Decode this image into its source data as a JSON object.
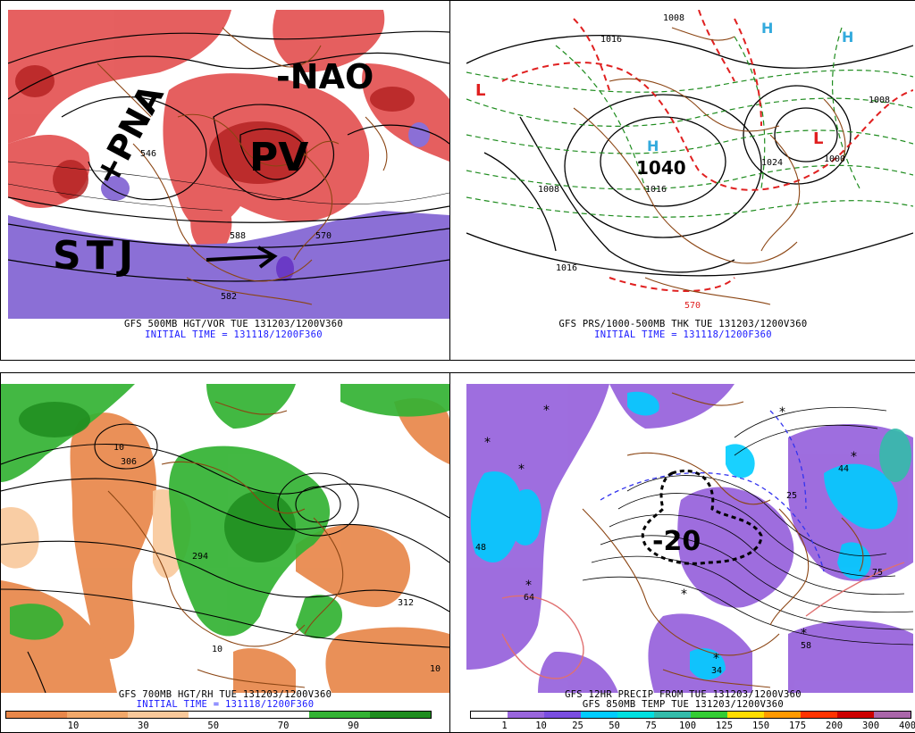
{
  "panels": {
    "tl": {
      "caption1": "GFS 500MB HGT/VOR TUE 131203/1200V360",
      "caption2": "INITIAL TIME = 131118/1200F360",
      "annotations": {
        "nao": "-NAO",
        "pna": "+PNA",
        "pv": "PV",
        "stj": "STJ"
      },
      "contour_labels": [
        "546",
        "588",
        "570",
        "582"
      ]
    },
    "tr": {
      "caption1": "GFS PRS/1000-500MB THK TUE 131203/1200V360",
      "caption2": "INITIAL TIME = 131118/1200F360",
      "annotations": {
        "high_value": "1040",
        "h": "H",
        "l": "L"
      },
      "contour_labels": [
        "1008",
        "1016",
        "1008",
        "1016",
        "1000",
        "1024",
        "1008",
        "570",
        "1016"
      ]
    },
    "bl": {
      "caption1": "GFS 700MB HGT/RH TUE 131203/1200V360",
      "caption2": "INITIAL TIME = 131118/1200F360",
      "colorbar_labels": [
        "10",
        "30",
        "50",
        "70",
        "90"
      ],
      "contour_labels": [
        "306",
        "312",
        "294",
        "10",
        "10",
        "10"
      ]
    },
    "br": {
      "caption1": "GFS 12HR PRECIP FROM TUE 131203/1200V360",
      "caption2": "GFS 850MB TEMP TUE 131203/1200V360",
      "annotations": {
        "temp": "-20"
      },
      "colorbar_labels": [
        "1",
        "10",
        "25",
        "50",
        "75",
        "100",
        "125",
        "150",
        "175",
        "200",
        "300",
        "400"
      ],
      "contour_labels": [
        "44",
        "48",
        "64",
        "75",
        "58",
        "34",
        "25"
      ]
    }
  },
  "colors": {
    "rh_scale": [
      "#e8874a",
      "#f2a86a",
      "#f8c89a",
      "#ffffff",
      "#ffffff",
      "#33b233",
      "#1e8c1e"
    ],
    "precip_scale": [
      "#ffffff",
      "#9966dd",
      "#7a4ee0",
      "#00ccff",
      "#00e0e0",
      "#33bbaa",
      "#33cc33",
      "#ffdd00",
      "#ff9900",
      "#ff3300",
      "#cc0000",
      "#aa66aa"
    ]
  }
}
